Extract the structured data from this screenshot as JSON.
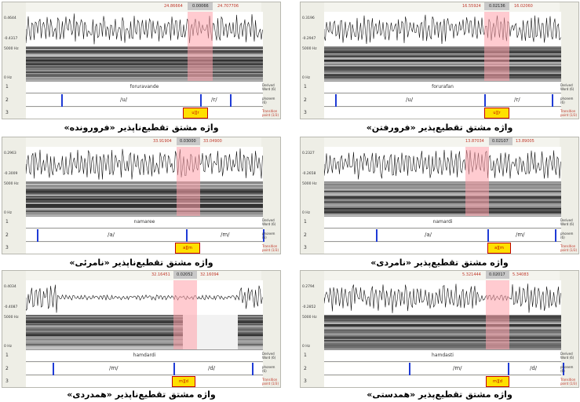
{
  "panels": [
    {
      "caption": "واژه مشتق تقطیع‌ناپذیر «فرورونده»",
      "word": "foruravande",
      "phonemes": [
        "/u/",
        "/r/"
      ],
      "transcription": "u][r",
      "time_left": "24.86664",
      "time_mid": "0.00066",
      "time_right": "24.707706",
      "amp_top": "0.4644",
      "amp_bottom": "-0.4317",
      "freq": "5000 Hz",
      "zero": "0 Hz",
      "tiers": [
        "Derived Word (6)",
        "phonem (6)",
        "Transition point (1/3)"
      ]
    },
    {
      "caption": "واژه مشتق تقطیع‌پذیر «فرورفتن»",
      "word": "forurafan",
      "phonemes": [
        "/u/",
        "/r/"
      ],
      "transcription": "u][r",
      "time_left": "16.55924",
      "time_mid": "0.02136",
      "time_right": "16.02060",
      "amp_top": "0.3196",
      "amp_bottom": "-0.2947",
      "freq": "5000 Hz",
      "zero": "0 Hz",
      "tiers": [
        "Derived Word (6)",
        "phonem (6)",
        "Transition point (1/3)"
      ]
    },
    {
      "caption": "واژه مشتق تقطیع‌ناپذیر «نامرئی»",
      "word": "namaree",
      "phonemes": [
        "/a/",
        "/m/"
      ],
      "transcription": "a][m",
      "time_left": "33.91904",
      "time_mid": "0.03000",
      "time_right": "33.04900",
      "amp_top": "0.2963",
      "amp_bottom": "-0.3009",
      "freq": "5000 Hz",
      "zero": "0 Hz",
      "tiers": [
        "Derived Word (6)",
        "phonem (6)",
        "Transition point (1/3)"
      ]
    },
    {
      "caption": "واژه مشتق تقطیع‌پذیر «نامردی»",
      "word": "namardi",
      "phonemes": [
        "/a/",
        "/m/"
      ],
      "transcription": "a][m",
      "time_left": "13.87034",
      "time_mid": "0.02107",
      "time_right": "13.89005",
      "amp_top": "0.2327",
      "amp_bottom": "-0.2658",
      "freq": "5000 Hz",
      "zero": "0 Hz",
      "tiers": [
        "Derived Word (6)",
        "phonem (6)",
        "Transition point (1/3)"
      ]
    },
    {
      "caption": "واژه مشتق تقطیع‌ناپذیر «همدردی»",
      "word": "hamdardi",
      "phonemes": [
        "/m/",
        "/d/"
      ],
      "transcription": "m][d",
      "time_left": "32.16451",
      "time_mid": "0.02052",
      "time_right": "32.16094",
      "amp_top": "0.4034",
      "amp_bottom": "-0.4087",
      "freq": "5000 Hz",
      "zero": "0 Hz",
      "tiers": [
        "Derived Word (6)",
        "phonem (6)",
        "Transition point (1/3)"
      ]
    },
    {
      "caption": "واژه مشتق تقطیع‌پذیر «همدستی»",
      "word": "hamdasti",
      "phonemes": [
        "/m/",
        "/d/"
      ],
      "transcription": "m][d",
      "time_left": "5.321444",
      "time_mid": "0.02017",
      "time_right": "5.34083",
      "amp_top": "0.2794",
      "amp_bottom": "-0.2852",
      "freq": "5000 Hz",
      "zero": "0 Hz",
      "tiers": [
        "Derived Word (6)",
        "phonem (6)",
        "Transition point (1/3)"
      ]
    }
  ]
}
